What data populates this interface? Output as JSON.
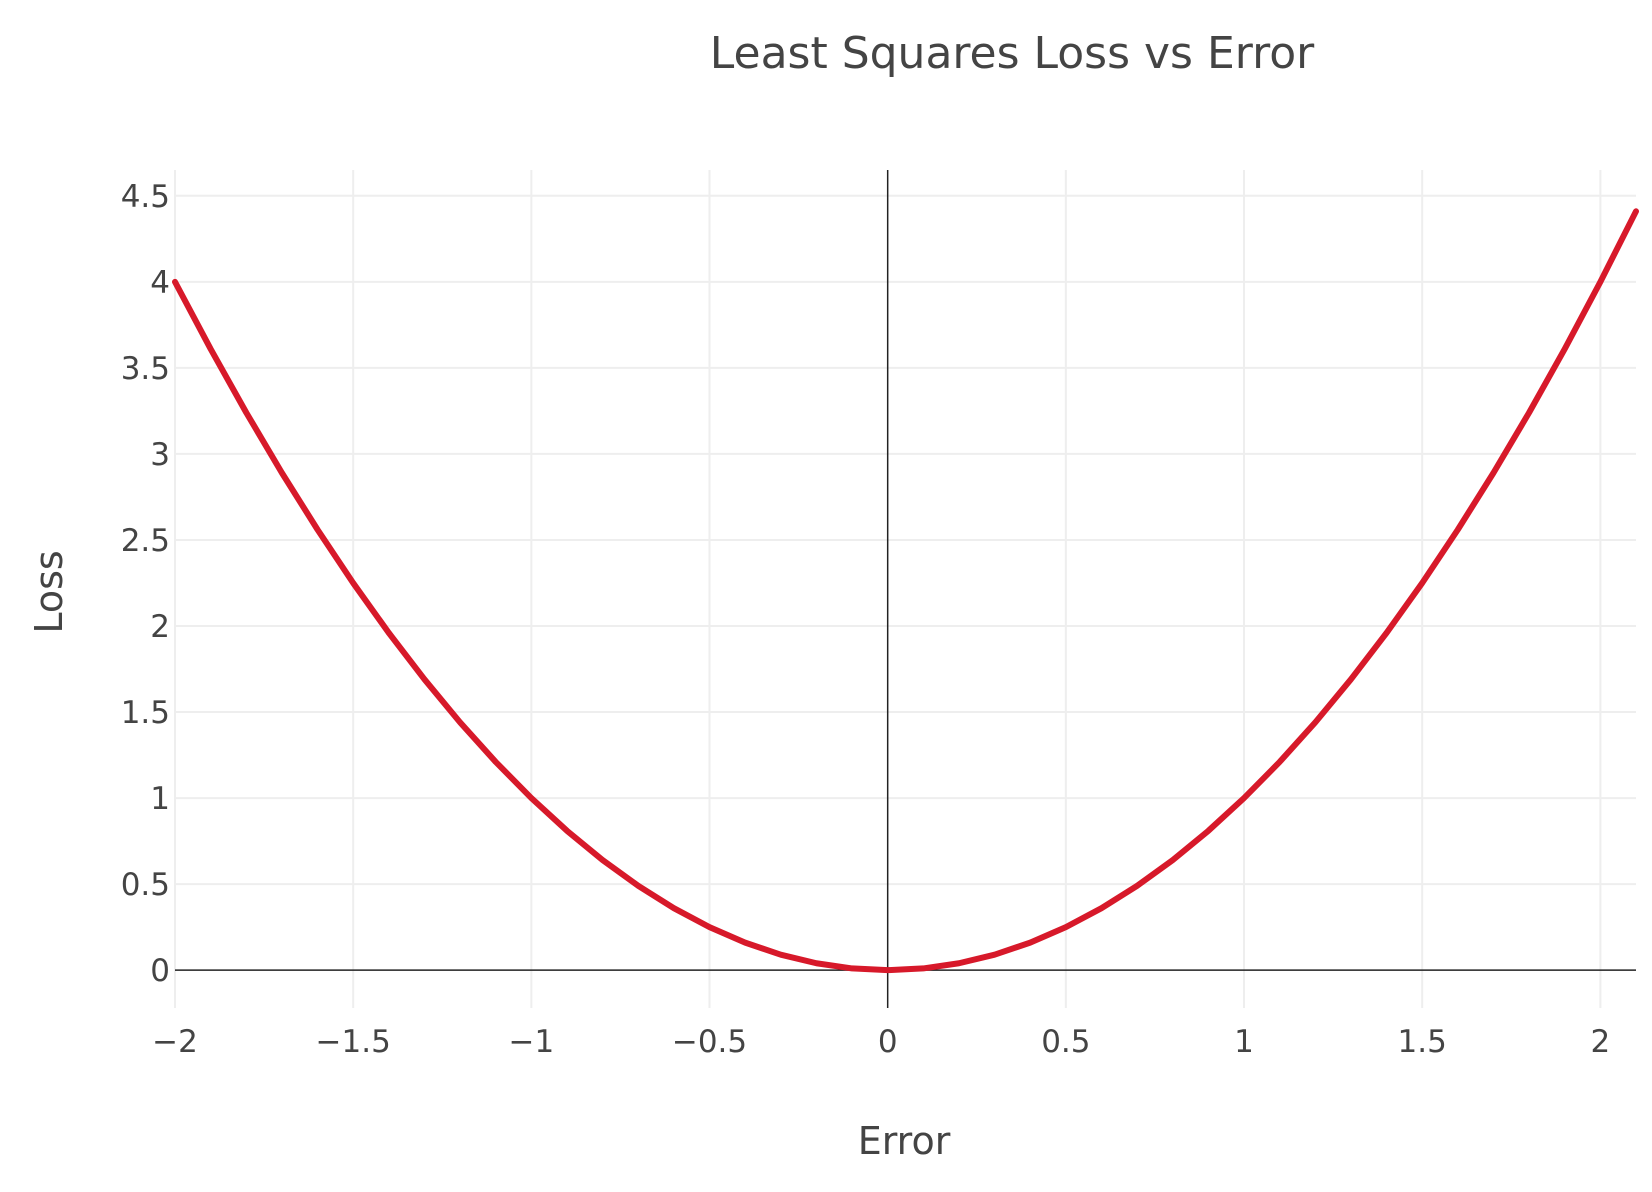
{
  "chart_data": {
    "type": "line",
    "title": "Least Squares Loss vs Error",
    "xlabel": "Error",
    "ylabel": "Loss",
    "xlim": [
      -2,
      2.1
    ],
    "ylim": [
      -0.22,
      4.65
    ],
    "xticks": [
      -2,
      -1.5,
      -1,
      -0.5,
      0,
      0.5,
      1,
      1.5,
      2
    ],
    "xtick_labels": [
      "−2",
      "−1.5",
      "−1",
      "−0.5",
      "0",
      "0.5",
      "1",
      "1.5",
      "2"
    ],
    "yticks": [
      0,
      0.5,
      1,
      1.5,
      2,
      2.5,
      3,
      3.5,
      4,
      4.5
    ],
    "ytick_labels": [
      "0",
      "0.5",
      "1",
      "1.5",
      "2",
      "2.5",
      "3",
      "3.5",
      "4",
      "4.5"
    ],
    "grid": true,
    "legend": "none",
    "series": [
      {
        "color": "#d7192a",
        "x": [
          -2,
          -1.9,
          -1.8,
          -1.7,
          -1.6,
          -1.5,
          -1.4,
          -1.3,
          -1.2,
          -1.1,
          -1,
          -0.9,
          -0.8,
          -0.7,
          -0.6,
          -0.5,
          -0.4,
          -0.3,
          -0.2,
          -0.1,
          0,
          0.1,
          0.2,
          0.3,
          0.4,
          0.5,
          0.6,
          0.7,
          0.8,
          0.9,
          1,
          1.1,
          1.2,
          1.3,
          1.4,
          1.5,
          1.6,
          1.7,
          1.8,
          1.9,
          2,
          2.1
        ],
        "y": [
          4,
          3.61,
          3.24,
          2.89,
          2.56,
          2.25,
          1.96,
          1.69,
          1.44,
          1.21,
          1,
          0.81,
          0.64,
          0.49,
          0.36,
          0.25,
          0.16,
          0.09,
          0.04,
          0.01,
          0,
          0.01,
          0.04,
          0.09,
          0.16,
          0.25,
          0.36,
          0.49,
          0.64,
          0.81,
          1,
          1.21,
          1.44,
          1.69,
          1.96,
          2.25,
          2.56,
          2.89,
          3.24,
          3.61,
          4,
          4.41
        ]
      }
    ]
  }
}
